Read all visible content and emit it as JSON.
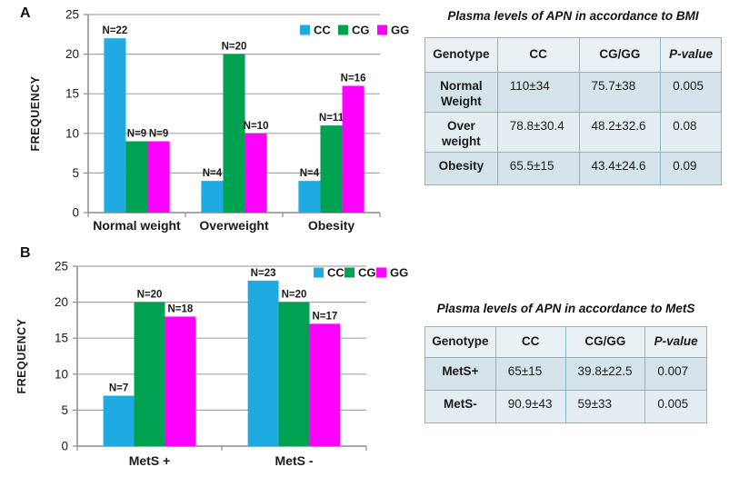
{
  "panels": [
    {
      "label": "A"
    },
    {
      "label": "B"
    }
  ],
  "chart_data": [
    {
      "type": "bar",
      "panel": "A",
      "title": "",
      "xlabel": "",
      "ylabel": "FREQUENCY",
      "categories": [
        "Normal weight",
        "Overweight",
        "Obesity"
      ],
      "series": [
        {
          "name": "CC",
          "color": "#1FABE2",
          "values": [
            22,
            4,
            4
          ]
        },
        {
          "name": "CG",
          "color": "#00A150",
          "values": [
            9,
            20,
            11
          ]
        },
        {
          "name": "GG",
          "color": "#FF00FF",
          "values": [
            9,
            10,
            16
          ]
        }
      ],
      "bar_label_prefix": "N=",
      "bar_labels": [
        [
          "N=22",
          "N=4",
          "N=4"
        ],
        [
          "N=9",
          "N=20",
          "N=11"
        ],
        [
          "N=9",
          "N=10",
          "N=16"
        ]
      ],
      "ylim": [
        0,
        25
      ],
      "yticks": [
        0,
        5,
        10,
        15,
        20,
        25
      ],
      "grid": true,
      "legend_position": "top-right"
    },
    {
      "type": "bar",
      "panel": "B",
      "title": "",
      "xlabel": "",
      "ylabel": "FREQUENCY",
      "categories": [
        "MetS +",
        "MetS -"
      ],
      "series": [
        {
          "name": "CC",
          "color": "#1FABE2",
          "values": [
            7,
            23
          ]
        },
        {
          "name": "CG",
          "color": "#00A150",
          "values": [
            20,
            20
          ]
        },
        {
          "name": "GG",
          "color": "#FF00FF",
          "values": [
            18,
            17
          ]
        }
      ],
      "bar_label_prefix": "N=",
      "bar_labels": [
        [
          "N=7",
          "N=23"
        ],
        [
          "N=20",
          "N=20"
        ],
        [
          "N=18",
          "N=17"
        ]
      ],
      "ylim": [
        0,
        25
      ],
      "yticks": [
        0,
        5,
        10,
        15,
        20,
        25
      ],
      "grid": true,
      "legend_position": "top-right"
    }
  ],
  "tables": [
    {
      "title": "Plasma levels of APN in accordance to BMI",
      "headers": [
        "Genotype",
        "CC",
        "CG/GG",
        "P-value"
      ],
      "rows": [
        {
          "cells": [
            "Normal Weight",
            "110±34",
            "75.7±38",
            "0.005"
          ]
        },
        {
          "cells": [
            "Over weight",
            "78.8±30.4",
            "48.2±32.6",
            "0.08"
          ]
        },
        {
          "cells": [
            "Obesity",
            "65.5±15",
            "43.4±24.6",
            "0.09"
          ]
        }
      ]
    },
    {
      "title": "Plasma levels of APN in accordance to MetS",
      "headers": [
        "Genotype",
        "CC",
        "CG/GG",
        "P-value"
      ],
      "rows": [
        {
          "cells": [
            "MetS+",
            "65±15",
            "39.8±22.5",
            "0.007"
          ]
        },
        {
          "cells": [
            "MetS-",
            "90.9±43",
            "59±33",
            "0.005"
          ]
        }
      ]
    }
  ],
  "colors": {
    "grid": "#A6A6A6",
    "axis": "#8C8C8C",
    "text": "#1A1A1A",
    "table_border": "#85B7C9",
    "table_header_bg": "#EAF1F5",
    "table_row_dark_bg": "#D5E3EB",
    "table_row_light_bg": "#E4EDF2"
  }
}
